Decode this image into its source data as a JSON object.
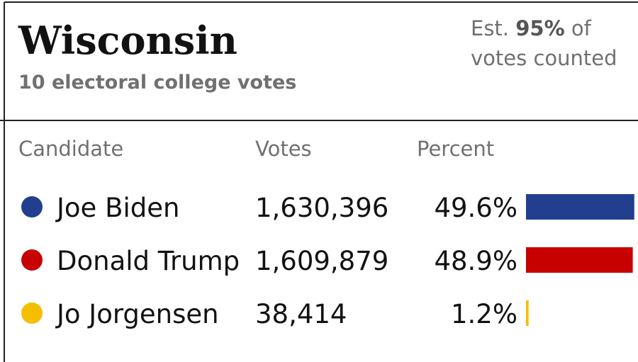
{
  "header": {
    "title": "Wisconsin",
    "subtitle": "10 electoral college votes",
    "estimate": {
      "prefix": "Est.",
      "share": "95%",
      "suffix_line1": "of",
      "suffix_line2": "votes counted"
    }
  },
  "table": {
    "columns": [
      "Candidate",
      "Votes",
      "Percent"
    ],
    "rows": [
      {
        "name": "Joe Biden",
        "color": "#213e8f",
        "votes": "1,630,396",
        "percent": {
          "value": 49.6,
          "label": "49.6%"
        }
      },
      {
        "name": "Donald Trump",
        "color": "#c70000",
        "votes": "1,609,879",
        "percent": {
          "value": 48.9,
          "label": "48.9%"
        }
      },
      {
        "name": "Jo Jorgensen",
        "color": "#f5be00",
        "votes": "38,414",
        "percent": {
          "value": 1.2,
          "label": "1.2%"
        }
      }
    ]
  }
}
